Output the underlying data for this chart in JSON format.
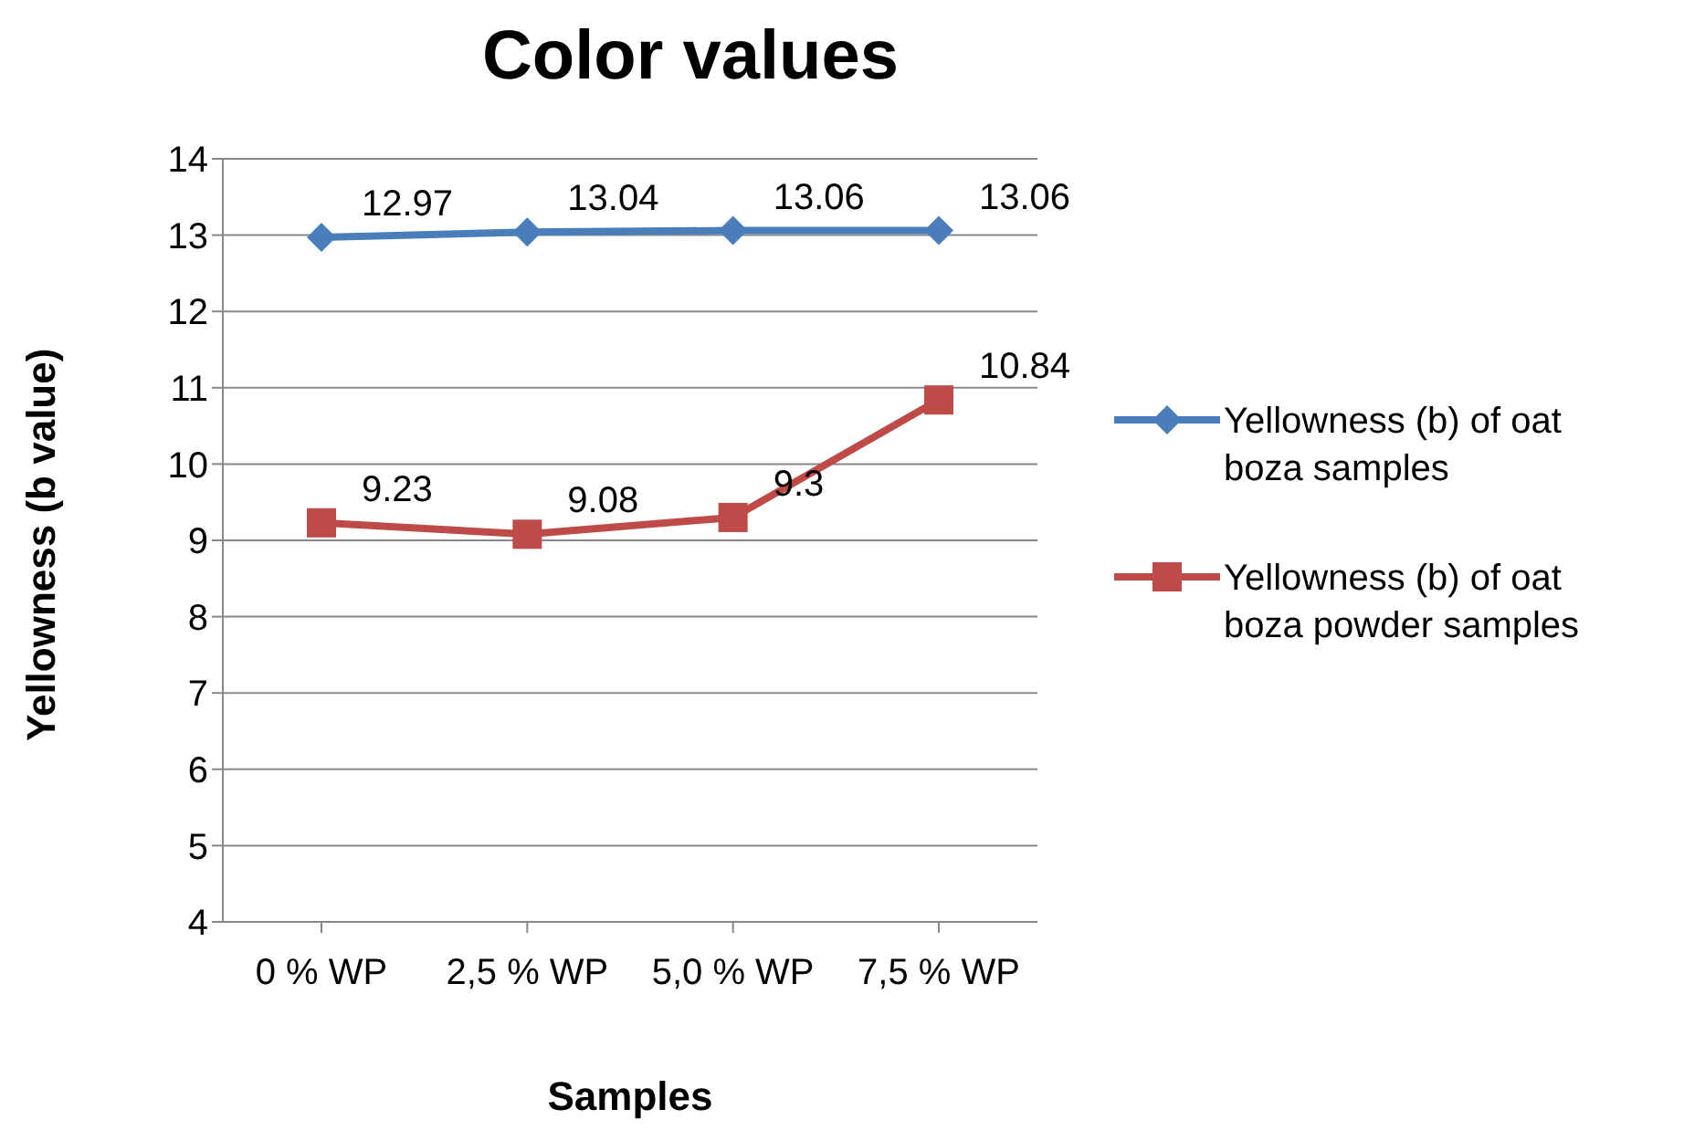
{
  "chart_data": {
    "type": "line",
    "title": "Color values",
    "xlabel": "Samples",
    "ylabel": "Yellowness (b value)",
    "categories": [
      "0 % WP",
      "2,5 % WP",
      "5,0 % WP",
      "7,5 % WP"
    ],
    "series": [
      {
        "name": "Yellowness (b) of oat boza samples",
        "color": "#4a7ebb",
        "values": [
          12.97,
          13.04,
          13.06,
          13.06
        ],
        "marker": "diamond"
      },
      {
        "name": "Yellowness (b) of oat boza powder samples",
        "color": "#be4b48",
        "values": [
          9.23,
          9.08,
          9.3,
          10.84
        ],
        "marker": "square"
      }
    ],
    "ylim": [
      4,
      14
    ],
    "yticks": [
      4,
      5,
      6,
      7,
      8,
      9,
      10,
      11,
      12,
      13,
      14
    ],
    "grid": "y",
    "legend": "right",
    "data_labels": true
  }
}
